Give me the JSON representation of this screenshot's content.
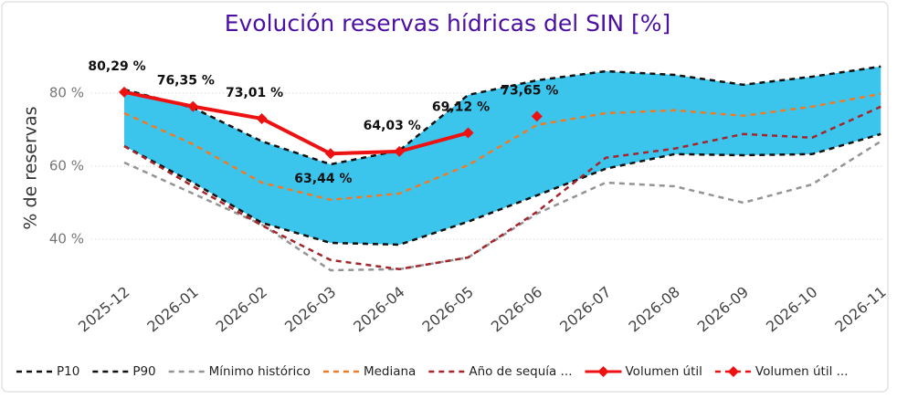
{
  "chart_data": {
    "type": "line",
    "title": "Evolución reservas hídricas del SIN [%]",
    "y_label": "% de reservas",
    "categories": [
      "2025-12",
      "2026-01",
      "2026-02",
      "2026-03",
      "2026-04",
      "2026-05",
      "2026-06",
      "2026-07",
      "2026-08",
      "2026-09",
      "2026-10",
      "2026-11"
    ],
    "ylim": [
      30,
      90
    ],
    "yticks": [
      {
        "value": 40,
        "label": "40 %"
      },
      {
        "value": 60,
        "label": "60 %"
      },
      {
        "value": 80,
        "label": "80 %"
      }
    ],
    "grid": true,
    "legend": "bottom",
    "series": [
      {
        "name": "P10",
        "color": "#111111",
        "style": "dashed",
        "values": [
          65.5,
          55.5,
          44.5,
          39,
          38.5,
          44.8,
          52,
          59.3,
          63.3,
          63,
          63.3,
          68.8
        ]
      },
      {
        "name": "P90",
        "color": "#111111",
        "style": "dashed",
        "band_fill": "#3cc5ec",
        "values": [
          81,
          76,
          66.8,
          60.5,
          64.3,
          79.5,
          83.5,
          86,
          85,
          82.3,
          84.5,
          87.3
        ]
      },
      {
        "name": "Mínimo histórico",
        "color": "#949494",
        "style": "dashed",
        "values": [
          61,
          52.5,
          44,
          31.5,
          31.8,
          35,
          47,
          55.5,
          54.5,
          50,
          55,
          66.8
        ]
      },
      {
        "name": "Mediana",
        "color": "#f07b27",
        "style": "dashed",
        "values": [
          74.5,
          66,
          55.5,
          50.8,
          52.5,
          60.3,
          71.3,
          74.5,
          75.3,
          73.8,
          76.3,
          79.8
        ]
      },
      {
        "name": "Año de sequía ...",
        "color": "#a4262c",
        "style": "dashed",
        "values": [
          65.5,
          54.5,
          43.8,
          34.3,
          31.8,
          35,
          47.5,
          62.3,
          64.8,
          68.8,
          67.8,
          76.3
        ]
      },
      {
        "name": "Volumen útil",
        "color": "#ee1111",
        "style": "solid",
        "marker": "diamond",
        "values": [
          80.29,
          76.35,
          73.01,
          63.44,
          64.03,
          69.12,
          null,
          null,
          null,
          null,
          null,
          null
        ],
        "value_labels": [
          "80,29 %",
          "76,35 %",
          "73,01 %",
          "63,44 %",
          "64,03 %",
          "69,12 %",
          null,
          null,
          null,
          null,
          null,
          null
        ]
      },
      {
        "name": "Volumen útil ...",
        "color": "#ee1111",
        "style": "none",
        "marker": "diamond",
        "values": [
          null,
          null,
          null,
          null,
          null,
          null,
          73.65,
          null,
          null,
          null,
          null,
          null
        ],
        "value_labels": [
          null,
          null,
          null,
          null,
          null,
          null,
          "73,65 %",
          null,
          null,
          null,
          null,
          null
        ]
      }
    ]
  }
}
